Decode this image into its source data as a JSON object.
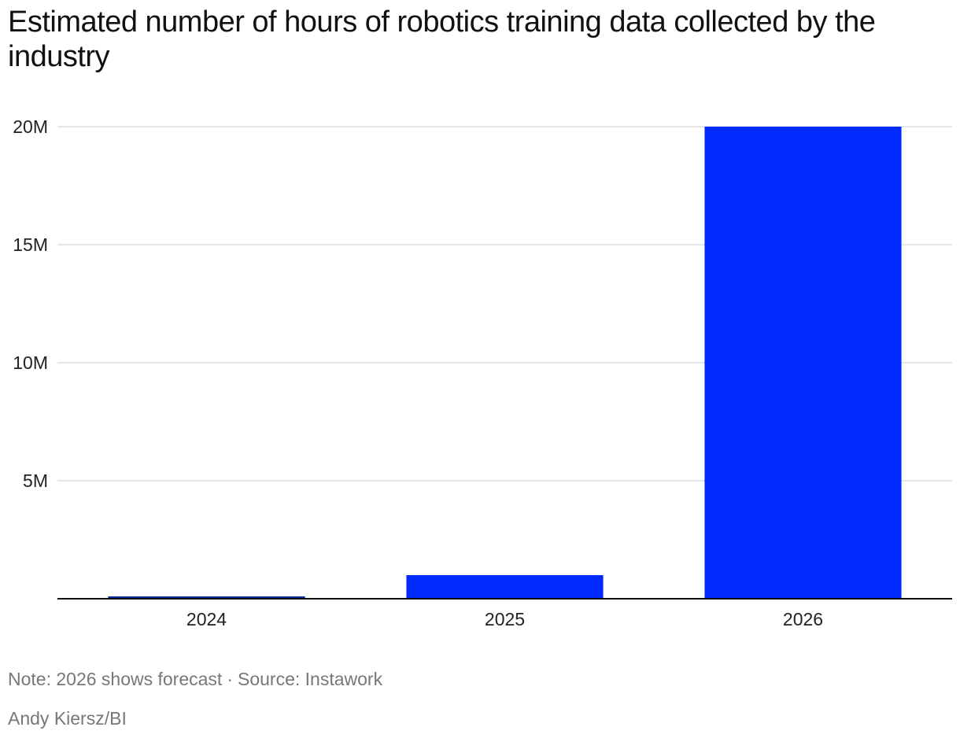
{
  "chart_data": {
    "type": "bar",
    "title": "Estimated number of hours of robotics training data collected by the industry",
    "categories": [
      "2024",
      "2025",
      "2026"
    ],
    "values": [
      100000,
      1000000,
      20000000
    ],
    "ylim": [
      0,
      20000000
    ],
    "yticks": [
      5000000,
      10000000,
      15000000,
      20000000
    ],
    "ytick_labels": [
      "5M",
      "10M",
      "15M",
      "20M"
    ],
    "xlabel": "",
    "ylabel": "",
    "grid": true,
    "bar_colors": [
      "#0a2a9e",
      "#002aff",
      "#002aff"
    ]
  },
  "footer": {
    "note": "Note: 2026 shows forecast",
    "separator": "·",
    "source": "Source: Instawork",
    "credit": "Andy Kiersz/BI"
  }
}
